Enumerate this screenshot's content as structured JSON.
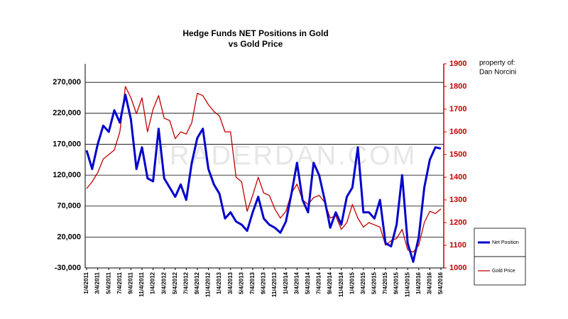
{
  "chart_data": {
    "type": "line",
    "title": "Hedge Funds NET Positions in Gold",
    "subtitle": "vs Gold Price",
    "annotations": [
      "property of:",
      "Dan Norcini",
      "TRADERDAN.COM"
    ],
    "categories": [
      "1/4/2011",
      null,
      "3/4/2011",
      null,
      "5/4/2011",
      null,
      "7/4/2011",
      null,
      "9/4/2011",
      null,
      "11/4/2011",
      null,
      "1/4/2012",
      null,
      "3/4/2012",
      null,
      "5/4/2012",
      null,
      "7/4/2012",
      null,
      "9/4/2012",
      null,
      "11/4/2012",
      null,
      "1/4/2013",
      null,
      "3/4/2013",
      null,
      "5/4/2013",
      null,
      "7/4/2013",
      null,
      "9/4/2013",
      null,
      "11/4/2013",
      null,
      "1/4/2014",
      null,
      "3/4/2014",
      null,
      "5/4/2014",
      null,
      "7/4/2014",
      null,
      "9/4/2014",
      null,
      "11/4/2014",
      null,
      "1/4/2015",
      null,
      "3/4/2015",
      null,
      "5/4/2015",
      null,
      "7/4/2015",
      null,
      "9/4/2015",
      null,
      "11/4/2015",
      null,
      "1/4/2016",
      null,
      "3/4/2016",
      null,
      "5/4/2016"
    ],
    "series": [
      {
        "name": "Net Position",
        "color": "#0000cc",
        "axis": "y",
        "values": [
          160000,
          130000,
          170000,
          200000,
          190000,
          225000,
          205000,
          250000,
          210000,
          130000,
          165000,
          115000,
          110000,
          195000,
          115000,
          100000,
          85000,
          105000,
          80000,
          140000,
          180000,
          195000,
          130000,
          105000,
          90000,
          50000,
          60000,
          45000,
          40000,
          30000,
          60000,
          85000,
          50000,
          40000,
          35000,
          27000,
          45000,
          90000,
          140000,
          80000,
          60000,
          140000,
          120000,
          80000,
          35000,
          60000,
          40000,
          85000,
          100000,
          165000,
          60000,
          60000,
          50000,
          80000,
          10000,
          5000,
          40000,
          120000,
          10000,
          -20000,
          20000,
          100000,
          145000,
          165000,
          163000
        ]
      },
      {
        "name": "Gold Price",
        "color": "#c00000",
        "axis": "y2",
        "values": [
          1350,
          1380,
          1420,
          1480,
          1500,
          1520,
          1600,
          1800,
          1750,
          1680,
          1750,
          1600,
          1700,
          1760,
          1660,
          1650,
          1570,
          1600,
          1590,
          1640,
          1770,
          1760,
          1720,
          1690,
          1670,
          1600,
          1600,
          1400,
          1380,
          1250,
          1320,
          1400,
          1330,
          1320,
          1260,
          1220,
          1250,
          1330,
          1370,
          1300,
          1280,
          1310,
          1320,
          1290,
          1220,
          1230,
          1170,
          1200,
          1280,
          1220,
          1180,
          1200,
          1190,
          1180,
          1100,
          1120,
          1130,
          1170,
          1080,
          1070,
          1100,
          1200,
          1250,
          1240,
          1260
        ]
      }
    ],
    "ylim": [
      -30000,
      300000
    ],
    "yticks": [
      {
        "value": -30000,
        "label": "-30,000"
      },
      {
        "value": 20000,
        "label": "20,000"
      },
      {
        "value": 70000,
        "label": "70,000"
      },
      {
        "value": 120000,
        "label": "120,000"
      },
      {
        "value": 170000,
        "label": "170,000"
      },
      {
        "value": 220000,
        "label": "220,000"
      },
      {
        "value": 270000,
        "label": "270,000"
      }
    ],
    "y2lim": [
      1000,
      1900
    ],
    "y2ticks": [
      1000,
      1100,
      1200,
      1300,
      1400,
      1500,
      1600,
      1700,
      1800,
      1900
    ],
    "grid": true,
    "legend": "right"
  }
}
